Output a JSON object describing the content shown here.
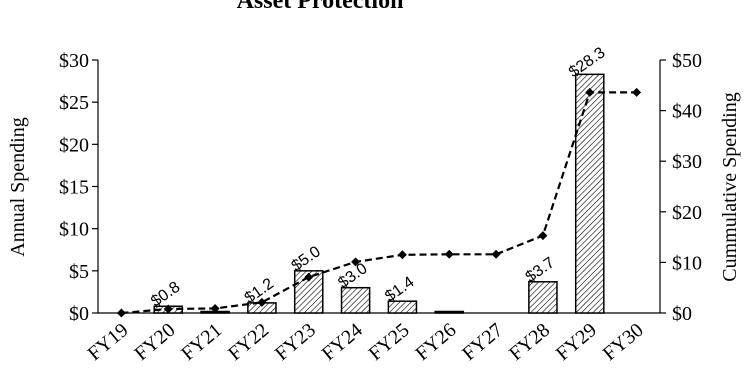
{
  "chart_data": {
    "type": "bar",
    "title": "Asset Protection",
    "categories": [
      "FY19",
      "FY20",
      "FY21",
      "FY22",
      "FY23",
      "FY24",
      "FY25",
      "FY26",
      "FY27",
      "FY28",
      "FY29",
      "FY30"
    ],
    "series": [
      {
        "axis": "left",
        "chart_type": "bar",
        "values": [
          0,
          0.8,
          0.1,
          1.2,
          5.0,
          3.0,
          1.4,
          0.1,
          0,
          3.7,
          28.3,
          0
        ],
        "data_labels": [
          "",
          "$0.8",
          "",
          "$1.2",
          "$5.0",
          "$3.0",
          "$1.4",
          "",
          "",
          "$3.7",
          "$28.3",
          ""
        ],
        "fill_pattern": "diagonal-hatch"
      },
      {
        "axis": "right",
        "chart_type": "line",
        "line_style": "dashed",
        "marker": "diamond",
        "values": [
          0,
          0.8,
          0.9,
          2.1,
          7.1,
          10.1,
          11.5,
          11.6,
          11.6,
          15.3,
          43.6,
          43.6
        ]
      }
    ],
    "ylabel": "Annual Spending",
    "y2label": "Cummulative Spending",
    "ylim": [
      0,
      30
    ],
    "y2lim": [
      0,
      50
    ],
    "yticks": [
      "$0",
      "$5",
      "$10",
      "$15",
      "$20",
      "$25",
      "$30"
    ],
    "y2ticks": [
      "$0",
      "$10",
      "$20",
      "$30",
      "$40",
      "$50"
    ],
    "grid": false,
    "legend": "none",
    "colors": {
      "bar_stroke": "#000000",
      "hatch": "#000000",
      "line": "#000000"
    }
  }
}
